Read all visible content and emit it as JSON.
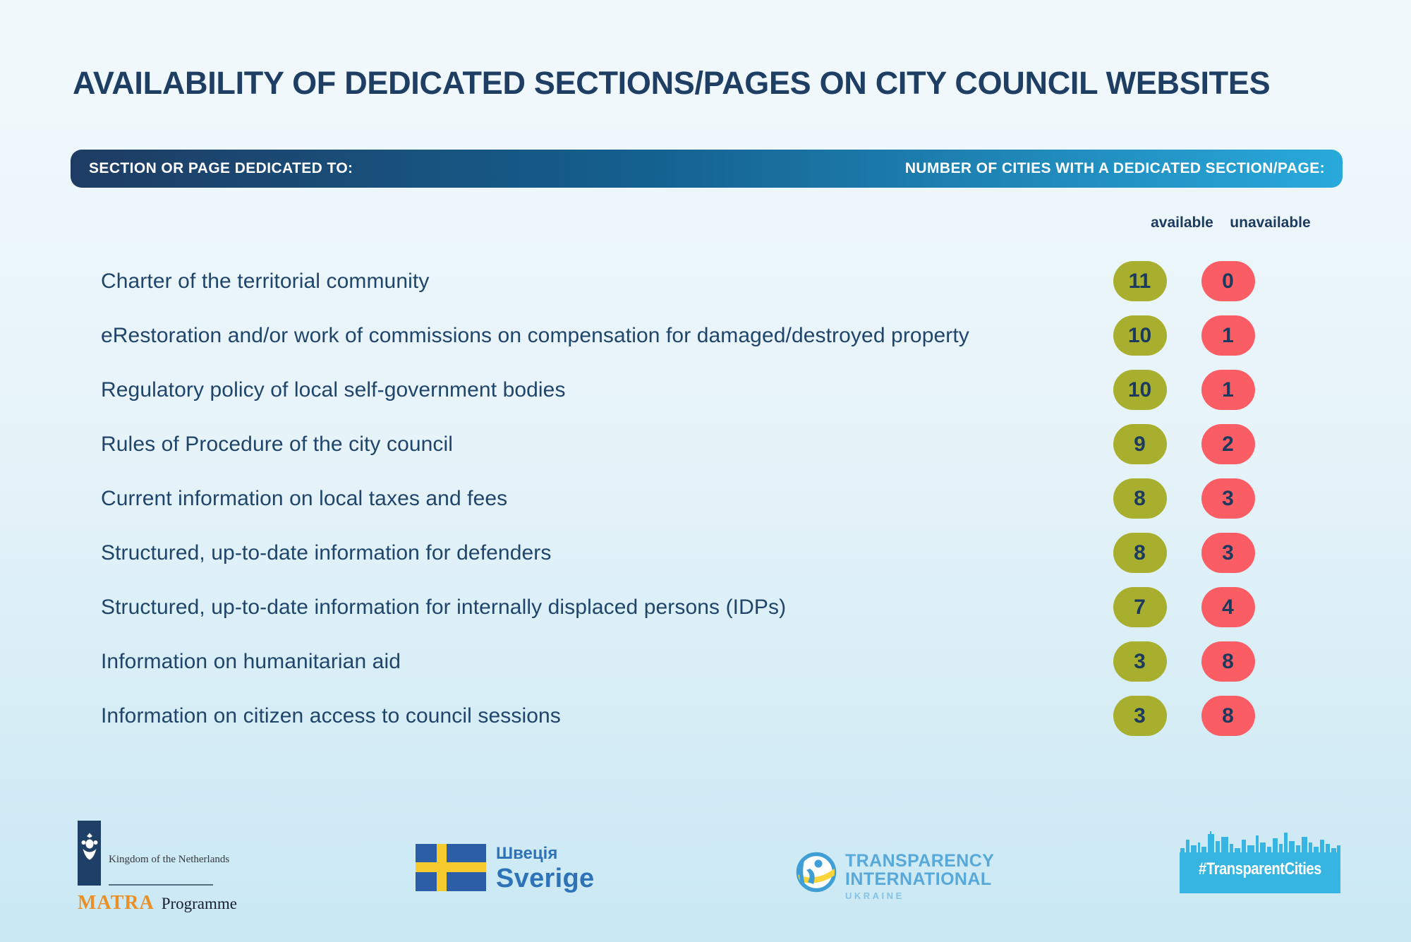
{
  "title": "AVAILABILITY OF DEDICATED SECTIONS/PAGES ON CITY COUNCIL WEBSITES",
  "header": {
    "left_label": "SECTION OR PAGE DEDICATED TO:",
    "right_label": "NUMBER OF CITIES WITH A DEDICATED SECTION/PAGE:"
  },
  "columns": {
    "available_label": "available",
    "unavailable_label": "unavailable"
  },
  "rows": [
    {
      "label": "Charter of the territorial community",
      "available": 11,
      "unavailable": 0
    },
    {
      "label": "eRestoration and/or work of commissions on compensation for damaged/destroyed property",
      "available": 10,
      "unavailable": 1
    },
    {
      "label": "Regulatory policy of local self-government bodies",
      "available": 10,
      "unavailable": 1
    },
    {
      "label": "Rules of Procedure of the city council",
      "available": 9,
      "unavailable": 2
    },
    {
      "label": "Current information on local taxes and fees",
      "available": 8,
      "unavailable": 3
    },
    {
      "label": "Structured, up-to-date information for defenders",
      "available": 8,
      "unavailable": 3
    },
    {
      "label": "Structured, up-to-date information for internally displaced persons (IDPs)",
      "available": 7,
      "unavailable": 4
    },
    {
      "label": "Information on humanitarian aid",
      "available": 3,
      "unavailable": 8
    },
    {
      "label": "Information on citizen access to council sessions",
      "available": 3,
      "unavailable": 8
    }
  ],
  "chart_data": {
    "type": "table",
    "title": "Availability of dedicated sections/pages on city council websites",
    "categories": [
      "Charter of the territorial community",
      "eRestoration and/or work of commissions on compensation for damaged/destroyed property",
      "Regulatory policy of local self-government bodies",
      "Rules of Procedure of the city council",
      "Current information on local taxes and fees",
      "Structured, up-to-date information for defenders",
      "Structured, up-to-date information for internally displaced persons (IDPs)",
      "Information on humanitarian aid",
      "Information on citizen access to council sessions"
    ],
    "series": [
      {
        "name": "available",
        "values": [
          11,
          10,
          10,
          9,
          8,
          8,
          7,
          3,
          3
        ]
      },
      {
        "name": "unavailable",
        "values": [
          0,
          1,
          1,
          2,
          3,
          3,
          4,
          8,
          8
        ]
      }
    ],
    "value_range": [
      0,
      11
    ],
    "legend_position": "top-right"
  },
  "colors": {
    "background_top": "#f2f9fc",
    "background_bottom": "#c9e8f4",
    "navy": "#1e3e63",
    "bar_gradient_start": "#1e3c63",
    "bar_gradient_end": "#29a9db",
    "available_badge": "#a8af2f",
    "unavailable_badge": "#fa5d64",
    "badge_number": "#1c3a5e"
  },
  "footer": {
    "netherlands": {
      "line1": "Kingdom of the Netherlands",
      "matra": "MATRA",
      "programme": "Programme"
    },
    "sweden": {
      "line1": "Швеція",
      "line2": "Sverige"
    },
    "transparency_international": {
      "line1": "TRANSPARENCY",
      "line2": "INTERNATIONAL",
      "line3": "UKRAINE"
    },
    "transparent_cities": {
      "label": "#TransparentCities"
    }
  }
}
